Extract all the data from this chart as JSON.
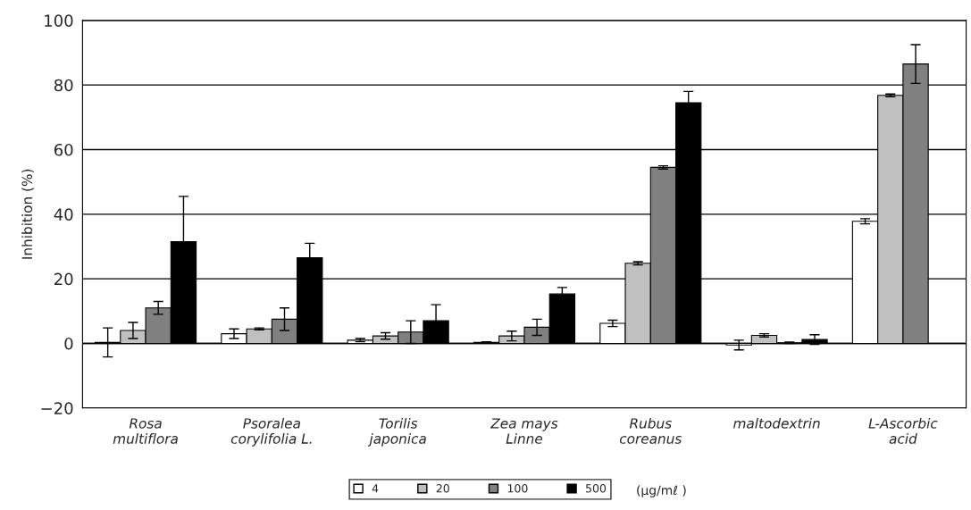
{
  "chart_data": {
    "type": "bar",
    "ylabel": "Inhibition (%)",
    "categories": [
      "Rosa\nmultiflora",
      "Psoralea\ncorylifolia L.",
      "Torilis\njaponica",
      "Zea mays\nLinne",
      "Rubus\ncoreanus",
      "maltodextrin",
      "L-Ascorbic\nacid"
    ],
    "series": [
      {
        "name": "4",
        "color": "#ffffff",
        "values": [
          0.3,
          3,
          1,
          0.3,
          6.2,
          -0.5,
          37.8
        ],
        "errors": [
          4.5,
          1.5,
          0.5,
          0.2,
          1,
          1.5,
          0.8
        ]
      },
      {
        "name": "20",
        "color": "#c0c0c0",
        "values": [
          4,
          4.5,
          2.3,
          2.3,
          24.8,
          2.5,
          76.8
        ],
        "errors": [
          2.5,
          0.3,
          1,
          1.5,
          0.5,
          0.5,
          0.4
        ]
      },
      {
        "name": "100",
        "color": "#808080",
        "values": [
          11,
          7.5,
          3.5,
          5,
          54.5,
          0.2,
          86.5
        ],
        "errors": [
          2,
          3.5,
          3.5,
          2.5,
          0.5,
          0.2,
          6
        ]
      },
      {
        "name": "500",
        "color": "#000000",
        "values": [
          31.5,
          26.5,
          7,
          15.3,
          74.5,
          1.2,
          null
        ],
        "errors": [
          14,
          4.5,
          5,
          2,
          3.5,
          1.5,
          null
        ]
      }
    ],
    "ylim": [
      -20,
      100
    ],
    "yticks": [
      -20,
      0,
      20,
      40,
      60,
      80,
      100
    ],
    "grid": "y",
    "legend": "bottom",
    "annotations": [
      "(μg/mℓ )"
    ]
  }
}
